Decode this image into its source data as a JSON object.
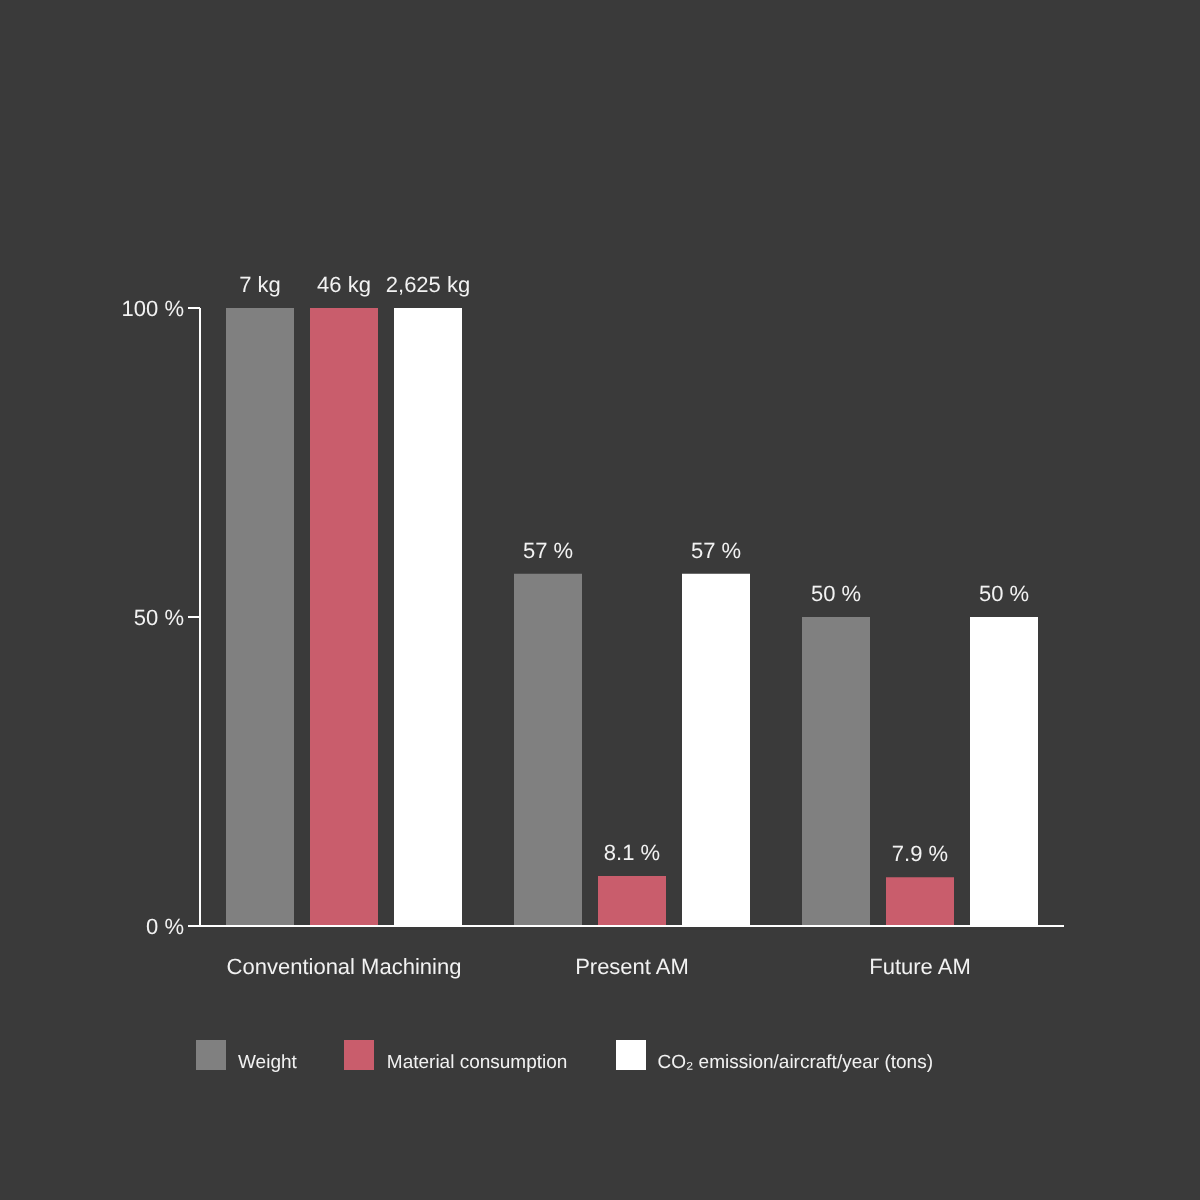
{
  "chart_data": {
    "type": "bar",
    "categories": [
      "Conventional Machining",
      "Present AM",
      "Future AM"
    ],
    "series": [
      {
        "name": "Weight",
        "color": "#808080",
        "values": [
          100,
          57,
          50
        ],
        "value_labels": [
          null,
          "57 %",
          "50 %"
        ]
      },
      {
        "name": "Material consumption",
        "color": "#c95d6c",
        "values": [
          100,
          8.1,
          7.9
        ],
        "value_labels": [
          null,
          "8.1 %",
          "7.9 %"
        ]
      },
      {
        "name": "CO₂ emission/aircraft/year (tons)",
        "color": "#ffffff",
        "values": [
          100,
          57,
          50
        ],
        "value_labels": [
          null,
          "57 %",
          "50 %"
        ]
      }
    ],
    "annotations": [
      {
        "text": "7 kg",
        "x": "Conventional Machining",
        "y": 100
      },
      {
        "text": "46 kg",
        "x": "Conventional Machining",
        "y": 100
      },
      {
        "text": "2,625 kg",
        "x": "Conventional Machining",
        "y": 100
      }
    ],
    "ylim": [
      0,
      100
    ],
    "yticks": [
      {
        "value": 0,
        "label": "0 %"
      },
      {
        "value": 50,
        "label": "50 %"
      },
      {
        "value": 100,
        "label": "100 %"
      }
    ],
    "legend": "bottom"
  }
}
